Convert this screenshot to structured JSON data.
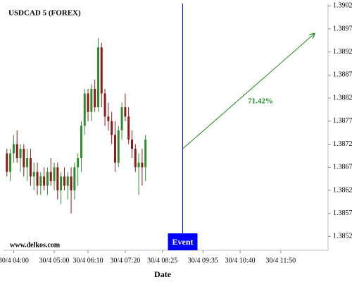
{
  "chart_data": {
    "type": "candlestick",
    "title": "USDCAD 5 (FOREX)",
    "watermark": "www.delkos.com",
    "x_label": "Date",
    "x": [
      0,
      1,
      2,
      3,
      4,
      5,
      6,
      7,
      8,
      9,
      10,
      11,
      12,
      13,
      14,
      15,
      16,
      17,
      18,
      19,
      20,
      21,
      22,
      23,
      24,
      25,
      26,
      27,
      28,
      29,
      30,
      31,
      32,
      33,
      34,
      35,
      36,
      37,
      38,
      39,
      40,
      41
    ],
    "open": [
      1.387,
      1.3866,
      1.387,
      1.3872,
      1.3869,
      1.3871,
      1.3867,
      1.3869,
      1.3865,
      1.3866,
      1.3863,
      1.3865,
      1.3863,
      1.3866,
      1.3864,
      1.3867,
      1.3862,
      1.3865,
      1.3863,
      1.3865,
      1.3862,
      1.3867,
      1.3869,
      1.3876,
      1.3883,
      1.3879,
      1.3884,
      1.388,
      1.3893,
      1.3883,
      1.3878,
      1.3877,
      1.3874,
      1.3868,
      1.3875,
      1.388,
      1.3878,
      1.3873,
      1.3871,
      1.3867,
      1.3868,
      1.3867
    ],
    "high": [
      1.3871,
      1.3871,
      1.3874,
      1.3875,
      1.3872,
      1.3872,
      1.3871,
      1.3871,
      1.3868,
      1.3868,
      1.3866,
      1.3867,
      1.3867,
      1.3869,
      1.3868,
      1.3868,
      1.3866,
      1.3867,
      1.3866,
      1.3867,
      1.3868,
      1.387,
      1.3877,
      1.3884,
      1.3884,
      1.3885,
      1.3886,
      1.3895,
      1.3894,
      1.3884,
      1.3881,
      1.3879,
      1.3877,
      1.3876,
      1.3881,
      1.3883,
      1.388,
      1.3875,
      1.3872,
      1.387,
      1.3871,
      1.3874
    ],
    "low": [
      1.3865,
      1.3864,
      1.3868,
      1.3868,
      1.3866,
      1.3865,
      1.3864,
      1.3863,
      1.3862,
      1.3861,
      1.3861,
      1.3862,
      1.3861,
      1.3863,
      1.3862,
      1.386,
      1.3859,
      1.3862,
      1.386,
      1.3857,
      1.386,
      1.3863,
      1.3866,
      1.3874,
      1.3877,
      1.3877,
      1.3879,
      1.3879,
      1.388,
      1.3876,
      1.3875,
      1.3872,
      1.3866,
      1.3867,
      1.3873,
      1.3877,
      1.3872,
      1.3869,
      1.3866,
      1.3861,
      1.3863,
      1.3864
    ],
    "close": [
      1.3866,
      1.387,
      1.3872,
      1.3869,
      1.3871,
      1.3867,
      1.3869,
      1.3865,
      1.3866,
      1.3863,
      1.3865,
      1.3863,
      1.3866,
      1.3864,
      1.3867,
      1.3862,
      1.3865,
      1.3863,
      1.3865,
      1.3862,
      1.3867,
      1.3869,
      1.3876,
      1.3883,
      1.3879,
      1.3884,
      1.388,
      1.3893,
      1.3883,
      1.3878,
      1.3877,
      1.3874,
      1.3868,
      1.3875,
      1.388,
      1.3878,
      1.3873,
      1.3871,
      1.3867,
      1.3868,
      1.3867,
      1.3873
    ],
    "up_color": "#2e8b2e",
    "down_color": "#8b1a1a",
    "xlim": [
      -1,
      95
    ],
    "ylim": [
      1.3849,
      1.39025
    ],
    "xticks": [
      {
        "value": 2,
        "label": "30/4 04:00"
      },
      {
        "value": 14,
        "label": "30/4 05:00"
      },
      {
        "value": 24,
        "label": "30/4 06:10"
      },
      {
        "value": 35,
        "label": "30/4 07:20"
      },
      {
        "value": 46,
        "label": "30/4 08:25"
      },
      {
        "value": 58,
        "label": "30/4 09:35"
      },
      {
        "value": 69,
        "label": "30/4 10:40"
      },
      {
        "value": 81,
        "label": "30/4 11:50"
      }
    ],
    "yticks": [
      1.3852,
      1.3857,
      1.3862,
      1.3867,
      1.3872,
      1.3877,
      1.3882,
      1.3887,
      1.3892,
      1.3897,
      1.3902
    ],
    "event": {
      "label": "Event",
      "x": 52,
      "color": "#0000ff"
    },
    "projection": {
      "label": "71.42%",
      "x": [
        52,
        91
      ],
      "y": [
        1.3871,
        1.3896
      ],
      "color": "#1a8a1a"
    }
  }
}
